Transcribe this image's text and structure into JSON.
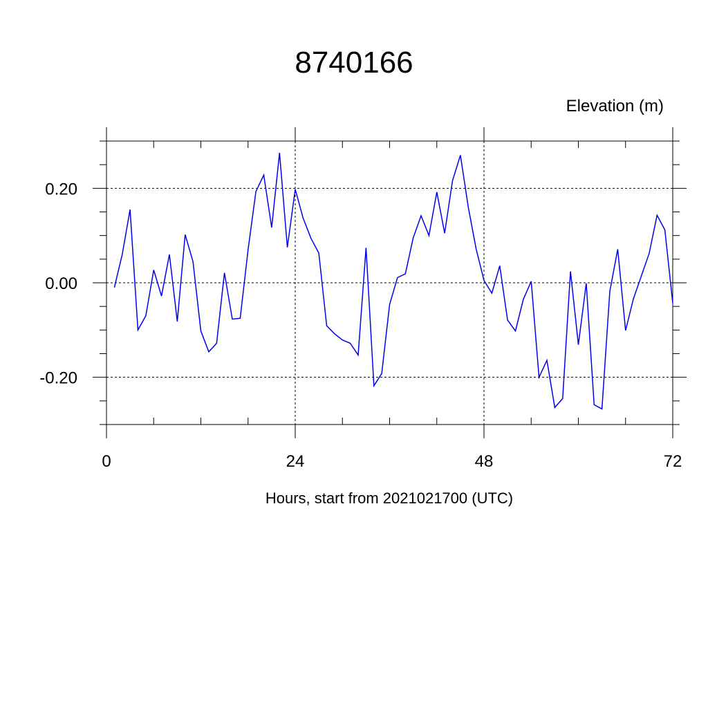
{
  "chart_data": {
    "type": "line",
    "title": "8740166",
    "ylabel": "Elevation (m)",
    "xlabel": "Hours, start from 2021021700 (UTC)",
    "xlim": [
      0,
      72
    ],
    "ylim": [
      -0.3,
      0.3
    ],
    "xticks": [
      0,
      24,
      48,
      72
    ],
    "xtick_labels": [
      "0",
      "24",
      "48",
      "72"
    ],
    "yticks": [
      0.2,
      0.0,
      -0.2
    ],
    "ytick_labels": [
      "0.20",
      "0.00",
      "-0.20"
    ],
    "grid": true,
    "line_color": "#0000ee",
    "series": [
      {
        "x": [
          1,
          2,
          3,
          4,
          5,
          6,
          7,
          8,
          9,
          10,
          11,
          12,
          13,
          14,
          15,
          16,
          17,
          18,
          19,
          20,
          21,
          22,
          23,
          24,
          25,
          26,
          27,
          28,
          29,
          30,
          31,
          32,
          33,
          34,
          35,
          36,
          37,
          38,
          39,
          40,
          41,
          42,
          43,
          44,
          45,
          46,
          47,
          48,
          49,
          50,
          51,
          52,
          53,
          54,
          55,
          56,
          57,
          58,
          59,
          60,
          61,
          62,
          63,
          64,
          65,
          66,
          67,
          68,
          69,
          70,
          71,
          72
        ],
        "y": [
          -0.01,
          0.06,
          0.155,
          -0.1,
          -0.07,
          0.027,
          -0.028,
          0.06,
          -0.082,
          0.102,
          0.045,
          -0.102,
          -0.146,
          -0.128,
          0.021,
          -0.077,
          -0.075,
          0.07,
          0.193,
          0.228,
          0.117,
          0.275,
          0.075,
          0.198,
          0.137,
          0.094,
          0.063,
          -0.091,
          -0.108,
          -0.121,
          -0.128,
          -0.153,
          0.074,
          -0.218,
          -0.192,
          -0.046,
          0.011,
          0.019,
          0.095,
          0.142,
          0.1,
          0.192,
          0.105,
          0.216,
          0.27,
          0.16,
          0.072,
          0.005,
          -0.022,
          0.036,
          -0.079,
          -0.102,
          -0.035,
          0.003,
          -0.2,
          -0.164,
          -0.264,
          -0.245,
          0.024,
          -0.131,
          -0.001,
          -0.258,
          -0.267,
          -0.018,
          0.071,
          -0.101,
          -0.034,
          0.014,
          0.062,
          0.143,
          0.112,
          -0.043
        ]
      }
    ]
  }
}
